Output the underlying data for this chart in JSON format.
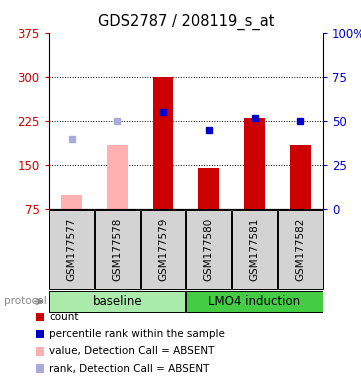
{
  "title": "GDS2787 / 208119_s_at",
  "samples": [
    "GSM177577",
    "GSM177578",
    "GSM177579",
    "GSM177580",
    "GSM177581",
    "GSM177582"
  ],
  "bar_values": [
    null,
    null,
    300,
    145,
    230,
    185
  ],
  "bar_absent_values": [
    100,
    185,
    null,
    null,
    null,
    null
  ],
  "dot_present_values": [
    null,
    null,
    240,
    210,
    230,
    225
  ],
  "dot_absent_values": [
    195,
    225,
    null,
    null,
    null,
    null
  ],
  "ylim_left": [
    75,
    375
  ],
  "ylim_right": [
    0,
    100
  ],
  "left_ticks": [
    75,
    150,
    225,
    300,
    375
  ],
  "right_ticks": [
    0,
    25,
    50,
    75,
    100
  ],
  "right_tick_labels": [
    "0",
    "25",
    "50",
    "75",
    "100%"
  ],
  "ytick_color_left": "#cc0000",
  "ytick_color_right": "#0000cc",
  "bar_color_present": "#cc0000",
  "bar_color_absent": "#ffb0b0",
  "dot_color_present": "#0000cc",
  "dot_color_absent": "#aaaadd",
  "legend": [
    {
      "color": "#cc0000",
      "label": "count"
    },
    {
      "color": "#0000cc",
      "label": "percentile rank within the sample"
    },
    {
      "color": "#ffb0b0",
      "label": "value, Detection Call = ABSENT"
    },
    {
      "color": "#aaaadd",
      "label": "rank, Detection Call = ABSENT"
    }
  ],
  "bar_bottom": 75,
  "figsize": [
    3.61,
    3.84
  ],
  "dpi": 100
}
